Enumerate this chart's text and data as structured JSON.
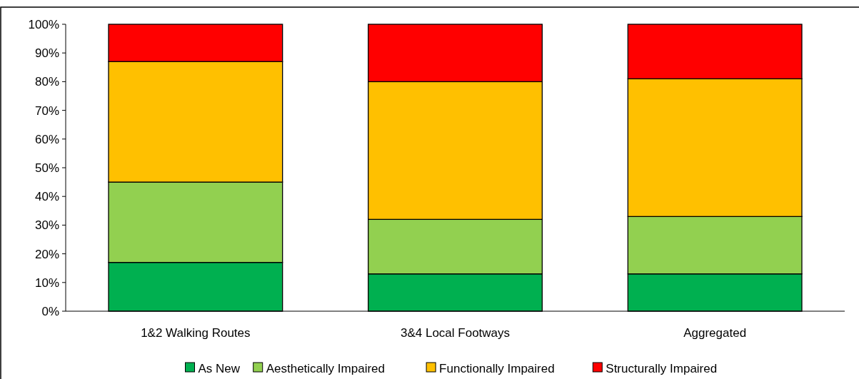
{
  "chart_data": {
    "type": "bar",
    "stacked": true,
    "categories": [
      "1&2 Walking Routes",
      "3&4 Local Footways",
      "Aggregated"
    ],
    "series": [
      {
        "name": "As New",
        "color": "#00b050",
        "values": [
          17,
          13,
          13
        ]
      },
      {
        "name": "Aesthetically Impaired",
        "color": "#92d050",
        "values": [
          28,
          19,
          20
        ]
      },
      {
        "name": "Functionally Impaired",
        "color": "#ffc000",
        "values": [
          42,
          48,
          48
        ]
      },
      {
        "name": "Structurally Impaired",
        "color": "#ff0000",
        "values": [
          13,
          20,
          19
        ]
      }
    ],
    "ylim": [
      0,
      100
    ],
    "yticks": [
      {
        "value": 0,
        "label": "0%"
      },
      {
        "value": 10,
        "label": "10%"
      },
      {
        "value": 20,
        "label": "20%"
      },
      {
        "value": 30,
        "label": "30%"
      },
      {
        "value": 40,
        "label": "40%"
      },
      {
        "value": 50,
        "label": "50%"
      },
      {
        "value": 60,
        "label": "60%"
      },
      {
        "value": 70,
        "label": "70%"
      },
      {
        "value": 80,
        "label": "80%"
      },
      {
        "value": 90,
        "label": "90%"
      },
      {
        "value": 100,
        "label": "100%"
      }
    ],
    "grid": false,
    "legend": "bottom"
  }
}
